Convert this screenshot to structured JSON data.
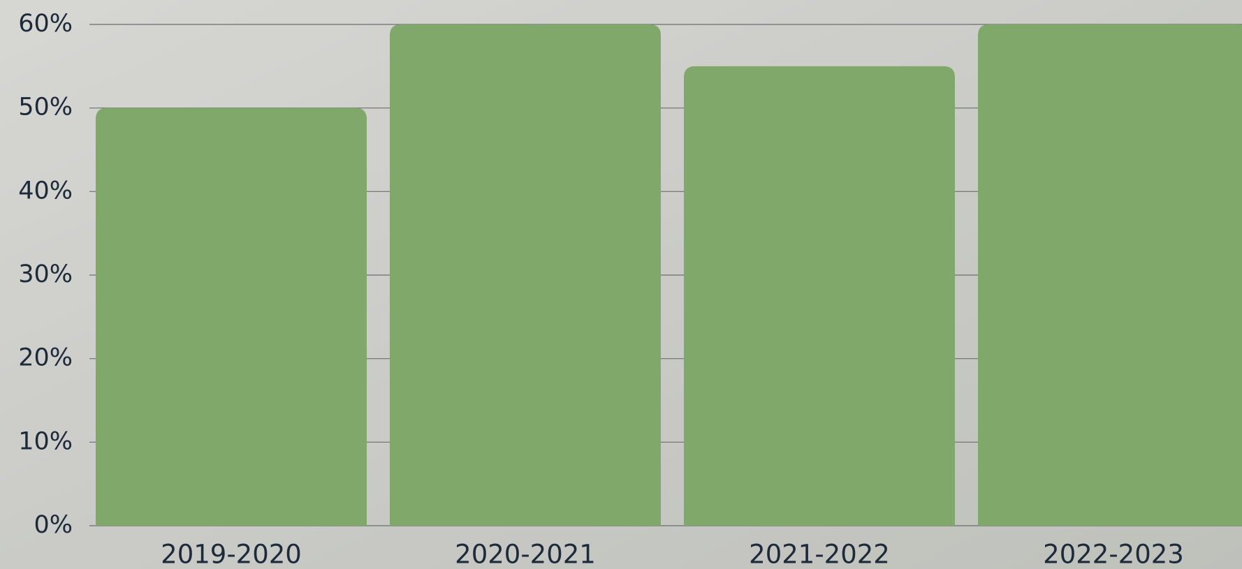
{
  "chart_data": {
    "type": "bar",
    "categories": [
      "2019-2020",
      "2020-2021",
      "2021-2022",
      "2022-2023"
    ],
    "values": [
      50,
      60,
      55,
      60
    ],
    "color": "#80a86a",
    "ylim": [
      0,
      60
    ],
    "yticks": [
      {
        "value": 0,
        "label": "0%"
      },
      {
        "value": 10,
        "label": "10%"
      },
      {
        "value": 20,
        "label": "20%"
      },
      {
        "value": 30,
        "label": "30%"
      },
      {
        "value": 40,
        "label": "40%"
      },
      {
        "value": 50,
        "label": "50%"
      },
      {
        "value": 60,
        "label": "60%"
      }
    ],
    "grid": true
  }
}
